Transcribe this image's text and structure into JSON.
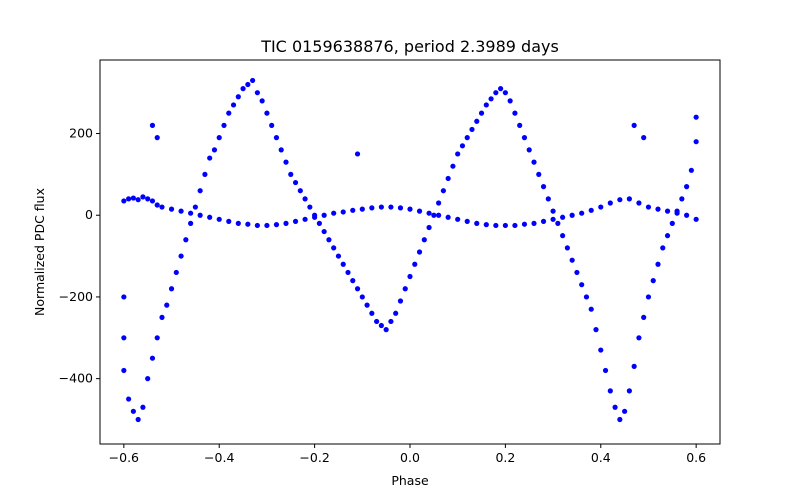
{
  "chart_data": {
    "type": "scatter",
    "title": "TIC 0159638876, period 2.3989 days",
    "xlabel": "Phase",
    "ylabel": "Normalized PDC flux",
    "xlim": [
      -0.65,
      0.65
    ],
    "ylim": [
      -560,
      380
    ],
    "xticks": [
      -0.6,
      -0.4,
      -0.2,
      0.0,
      0.2,
      0.4,
      0.6
    ],
    "xtick_labels": [
      "−0.6",
      "−0.4",
      "−0.2",
      "0.0",
      "0.2",
      "0.4",
      "0.6"
    ],
    "yticks": [
      -400,
      -200,
      0,
      200
    ],
    "ytick_labels": [
      "−400",
      "−200",
      "0",
      "200"
    ],
    "grid": false,
    "series": [
      {
        "color": "#0000ff",
        "marker": "circle",
        "description": "phase-folded light curve, two interleaved components",
        "points": [
          [
            -0.6,
            35
          ],
          [
            -0.59,
            40
          ],
          [
            -0.58,
            42
          ],
          [
            -0.57,
            38
          ],
          [
            -0.56,
            45
          ],
          [
            -0.55,
            40
          ],
          [
            -0.54,
            35
          ],
          [
            -0.53,
            25
          ],
          [
            -0.52,
            20
          ],
          [
            -0.5,
            15
          ],
          [
            -0.48,
            10
          ],
          [
            -0.46,
            5
          ],
          [
            -0.44,
            0
          ],
          [
            -0.42,
            -5
          ],
          [
            -0.4,
            -10
          ],
          [
            -0.38,
            -15
          ],
          [
            -0.36,
            -20
          ],
          [
            -0.34,
            -22
          ],
          [
            -0.32,
            -25
          ],
          [
            -0.3,
            -25
          ],
          [
            -0.28,
            -23
          ],
          [
            -0.26,
            -20
          ],
          [
            -0.24,
            -15
          ],
          [
            -0.22,
            -10
          ],
          [
            -0.2,
            -5
          ],
          [
            -0.18,
            0
          ],
          [
            -0.16,
            5
          ],
          [
            -0.14,
            8
          ],
          [
            -0.12,
            12
          ],
          [
            -0.1,
            15
          ],
          [
            -0.08,
            18
          ],
          [
            -0.06,
            20
          ],
          [
            -0.04,
            20
          ],
          [
            -0.02,
            18
          ],
          [
            0.0,
            15
          ],
          [
            0.02,
            10
          ],
          [
            0.04,
            5
          ],
          [
            0.06,
            0
          ],
          [
            0.08,
            -5
          ],
          [
            0.1,
            -10
          ],
          [
            0.12,
            -15
          ],
          [
            0.14,
            -20
          ],
          [
            0.16,
            -23
          ],
          [
            0.18,
            -25
          ],
          [
            0.2,
            -25
          ],
          [
            0.22,
            -25
          ],
          [
            0.24,
            -22
          ],
          [
            0.26,
            -20
          ],
          [
            0.28,
            -15
          ],
          [
            0.3,
            -10
          ],
          [
            0.32,
            -5
          ],
          [
            0.34,
            0
          ],
          [
            0.36,
            5
          ],
          [
            0.38,
            12
          ],
          [
            0.4,
            20
          ],
          [
            0.42,
            30
          ],
          [
            0.44,
            38
          ],
          [
            0.46,
            40
          ],
          [
            0.48,
            30
          ],
          [
            0.5,
            20
          ],
          [
            0.52,
            15
          ],
          [
            0.54,
            10
          ],
          [
            0.56,
            5
          ],
          [
            0.58,
            0
          ],
          [
            0.6,
            -10
          ],
          [
            -0.6,
            -200
          ],
          [
            -0.6,
            -300
          ],
          [
            -0.6,
            -380
          ],
          [
            -0.59,
            -450
          ],
          [
            -0.58,
            -480
          ],
          [
            -0.57,
            -500
          ],
          [
            -0.56,
            -470
          ],
          [
            -0.55,
            -400
          ],
          [
            -0.54,
            -350
          ],
          [
            -0.53,
            -300
          ],
          [
            -0.52,
            -250
          ],
          [
            -0.51,
            -220
          ],
          [
            -0.5,
            -180
          ],
          [
            -0.49,
            -140
          ],
          [
            -0.48,
            -100
          ],
          [
            -0.47,
            -60
          ],
          [
            -0.46,
            -20
          ],
          [
            -0.45,
            20
          ],
          [
            -0.44,
            60
          ],
          [
            -0.43,
            100
          ],
          [
            -0.42,
            140
          ],
          [
            -0.41,
            160
          ],
          [
            -0.4,
            190
          ],
          [
            -0.39,
            220
          ],
          [
            -0.38,
            250
          ],
          [
            -0.37,
            270
          ],
          [
            -0.36,
            290
          ],
          [
            -0.35,
            310
          ],
          [
            -0.34,
            320
          ],
          [
            -0.33,
            330
          ],
          [
            -0.32,
            300
          ],
          [
            -0.31,
            280
          ],
          [
            -0.3,
            250
          ],
          [
            -0.29,
            220
          ],
          [
            -0.28,
            190
          ],
          [
            -0.27,
            160
          ],
          [
            -0.26,
            130
          ],
          [
            -0.25,
            100
          ],
          [
            -0.24,
            80
          ],
          [
            -0.23,
            60
          ],
          [
            -0.22,
            40
          ],
          [
            -0.21,
            20
          ],
          [
            -0.2,
            0
          ],
          [
            -0.19,
            -20
          ],
          [
            -0.18,
            -40
          ],
          [
            -0.17,
            -60
          ],
          [
            -0.16,
            -80
          ],
          [
            -0.15,
            -100
          ],
          [
            -0.14,
            -120
          ],
          [
            -0.13,
            -140
          ],
          [
            -0.12,
            -160
          ],
          [
            -0.11,
            -180
          ],
          [
            -0.1,
            -200
          ],
          [
            -0.09,
            -220
          ],
          [
            -0.08,
            -240
          ],
          [
            -0.07,
            -260
          ],
          [
            -0.06,
            -270
          ],
          [
            -0.05,
            -280
          ],
          [
            -0.04,
            -260
          ],
          [
            -0.03,
            -240
          ],
          [
            -0.02,
            -210
          ],
          [
            -0.01,
            -180
          ],
          [
            0.0,
            -150
          ],
          [
            0.01,
            -120
          ],
          [
            0.02,
            -90
          ],
          [
            0.03,
            -60
          ],
          [
            0.04,
            -30
          ],
          [
            0.05,
            0
          ],
          [
            0.06,
            30
          ],
          [
            0.07,
            60
          ],
          [
            0.08,
            90
          ],
          [
            0.09,
            120
          ],
          [
            0.1,
            150
          ],
          [
            0.11,
            170
          ],
          [
            0.12,
            190
          ],
          [
            0.13,
            210
          ],
          [
            0.14,
            230
          ],
          [
            0.15,
            250
          ],
          [
            0.16,
            270
          ],
          [
            0.17,
            285
          ],
          [
            0.18,
            300
          ],
          [
            0.19,
            310
          ],
          [
            0.2,
            300
          ],
          [
            0.21,
            280
          ],
          [
            0.22,
            250
          ],
          [
            0.23,
            220
          ],
          [
            0.24,
            190
          ],
          [
            0.25,
            160
          ],
          [
            0.26,
            130
          ],
          [
            0.27,
            100
          ],
          [
            0.28,
            70
          ],
          [
            0.29,
            40
          ],
          [
            0.3,
            10
          ],
          [
            0.31,
            -20
          ],
          [
            0.32,
            -50
          ],
          [
            0.33,
            -80
          ],
          [
            0.34,
            -110
          ],
          [
            0.35,
            -140
          ],
          [
            0.36,
            -170
          ],
          [
            0.37,
            -200
          ],
          [
            0.38,
            -230
          ],
          [
            0.39,
            -280
          ],
          [
            0.4,
            -330
          ],
          [
            0.41,
            -380
          ],
          [
            0.42,
            -430
          ],
          [
            0.43,
            -470
          ],
          [
            0.44,
            -500
          ],
          [
            0.45,
            -480
          ],
          [
            0.46,
            -430
          ],
          [
            0.47,
            -370
          ],
          [
            0.48,
            -300
          ],
          [
            0.49,
            -250
          ],
          [
            0.5,
            -200
          ],
          [
            0.51,
            -160
          ],
          [
            0.52,
            -120
          ],
          [
            0.53,
            -80
          ],
          [
            0.54,
            -50
          ],
          [
            0.55,
            -20
          ],
          [
            0.56,
            10
          ],
          [
            0.57,
            40
          ],
          [
            0.58,
            70
          ],
          [
            0.59,
            110
          ],
          [
            0.6,
            180
          ],
          [
            -0.54,
            220
          ],
          [
            -0.53,
            190
          ],
          [
            -0.11,
            150
          ],
          [
            0.47,
            220
          ],
          [
            0.49,
            190
          ],
          [
            0.6,
            240
          ]
        ]
      }
    ]
  }
}
